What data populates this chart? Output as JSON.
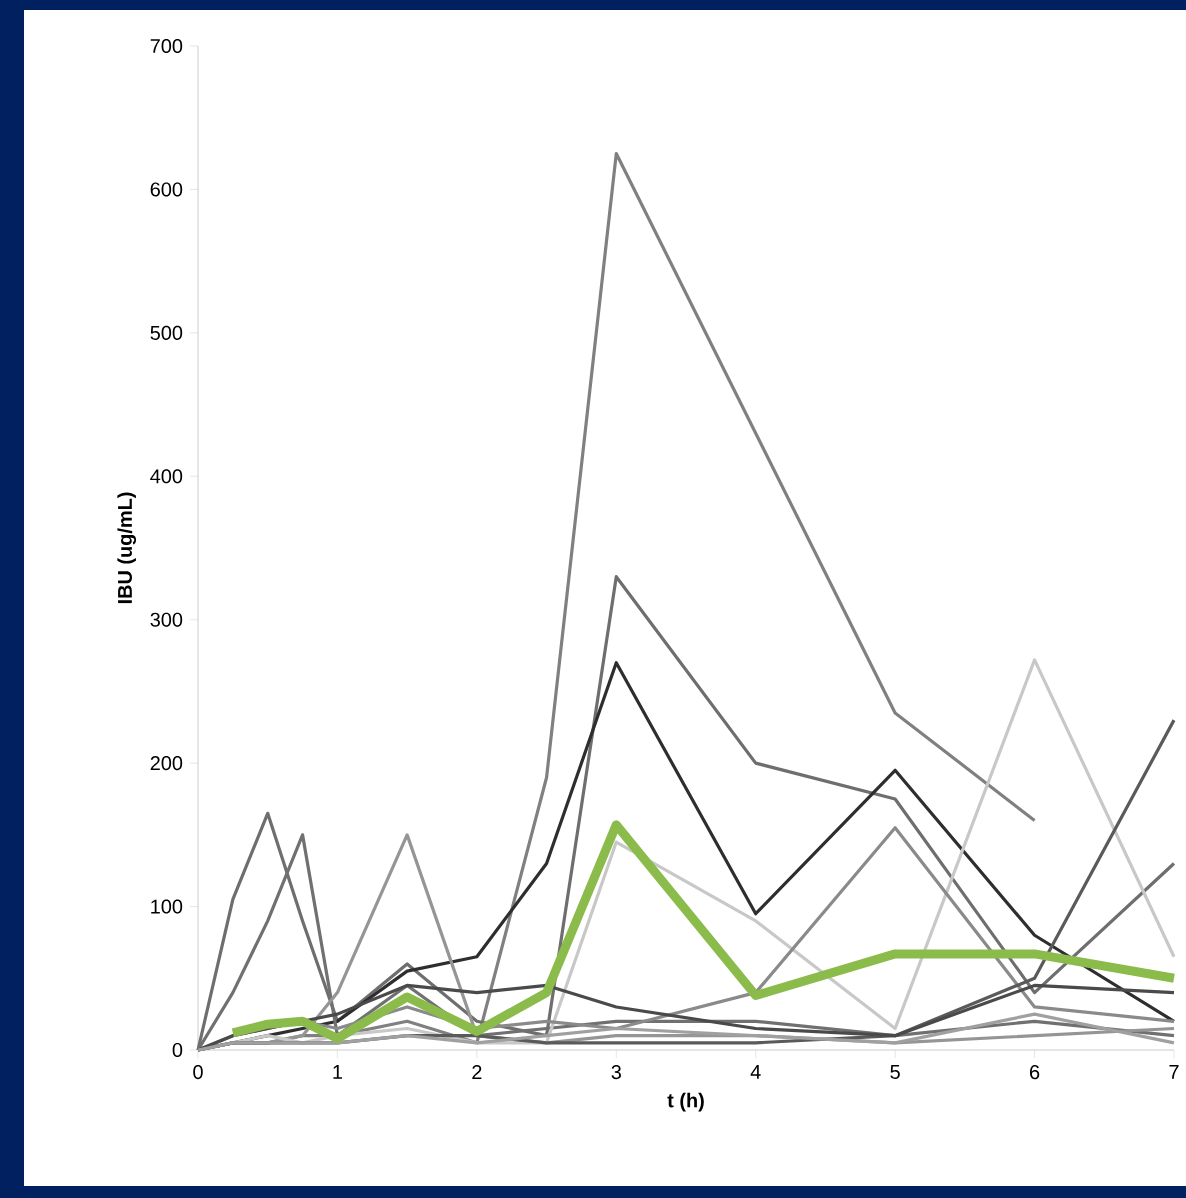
{
  "chart_data": {
    "type": "line",
    "xlabel": "t (h)",
    "ylabel": "IBU (ug/mL)",
    "x": [
      0,
      0.25,
      0.5,
      0.75,
      1,
      1.5,
      2,
      2.5,
      3,
      4,
      5,
      6,
      7
    ],
    "xlim": [
      0,
      7
    ],
    "xticks": [
      0,
      1,
      2,
      3,
      4,
      5,
      6,
      7
    ],
    "ylim": [
      0,
      700
    ],
    "yticks": [
      0,
      100,
      200,
      300,
      400,
      500,
      600,
      700
    ],
    "grid": false,
    "marker": "none",
    "line_style": "solid",
    "series": [
      {
        "color": "#808080",
        "values": [
          0,
          5,
          5,
          10,
          10,
          20,
          5,
          190,
          625,
          430,
          235,
          160,
          null
        ]
      },
      {
        "color": "#6e6e6e",
        "values": [
          0,
          105,
          165,
          90,
          20,
          60,
          20,
          10,
          330,
          200,
          175,
          40,
          130
        ]
      },
      {
        "color": "#2e2e2e",
        "values": [
          0,
          5,
          10,
          15,
          20,
          55,
          65,
          130,
          270,
          95,
          195,
          80,
          20
        ]
      },
      {
        "color": "#707070",
        "values": [
          0,
          40,
          90,
          150,
          10,
          45,
          10,
          15,
          20,
          20,
          10,
          20,
          10
        ]
      },
      {
        "color": "#959595",
        "values": [
          0,
          5,
          5,
          10,
          40,
          150,
          10,
          5,
          10,
          10,
          5,
          10,
          15
        ]
      },
      {
        "color": "#c8c8c8",
        "values": [
          0,
          5,
          10,
          5,
          10,
          15,
          5,
          5,
          145,
          90,
          15,
          272,
          65
        ]
      },
      {
        "color": "#8a8a8a",
        "values": [
          0,
          10,
          15,
          20,
          15,
          30,
          15,
          20,
          15,
          40,
          155,
          30,
          20
        ]
      },
      {
        "color": "#5a5a5a",
        "values": [
          0,
          5,
          5,
          5,
          5,
          10,
          10,
          5,
          5,
          5,
          10,
          50,
          230
        ]
      },
      {
        "color": "#4a4a4a",
        "values": [
          0,
          10,
          15,
          20,
          25,
          45,
          40,
          45,
          30,
          15,
          10,
          45,
          40
        ]
      },
      {
        "color": "#a0a0a0",
        "values": [
          0,
          5,
          5,
          5,
          5,
          10,
          5,
          10,
          15,
          10,
          5,
          25,
          5
        ]
      },
      {
        "color": "#8bbb4b",
        "values": [
          null,
          12,
          18,
          20,
          8,
          37,
          13,
          40,
          157,
          38,
          67,
          67,
          50
        ]
      }
    ]
  }
}
